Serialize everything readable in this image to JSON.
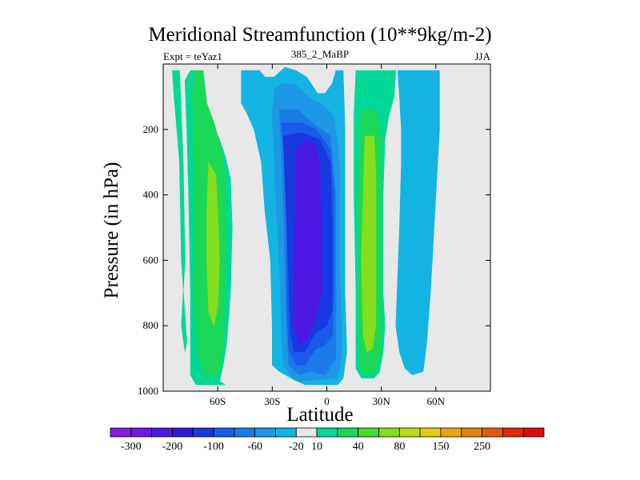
{
  "chart_data": {
    "type": "heatmap",
    "subtype": "filled-contour",
    "title": "Meridional Streamfunction (10**9kg/m-2)",
    "left_string": "Expt = teYaz1",
    "center_string": "385_2_MaBP",
    "right_string": "JJA",
    "xlabel": "Latitude",
    "ylabel": "Pressure (in hPa)",
    "xlim": [
      -90,
      90
    ],
    "ylim": [
      1000,
      0
    ],
    "x_ticks": [
      {
        "value": -60,
        "label": "60S"
      },
      {
        "value": -30,
        "label": "30S"
      },
      {
        "value": 0,
        "label": "0"
      },
      {
        "value": 30,
        "label": "30N"
      },
      {
        "value": 60,
        "label": "60N"
      }
    ],
    "y_ticks": [
      {
        "value": 200,
        "label": "200"
      },
      {
        "value": 400,
        "label": "400"
      },
      {
        "value": 600,
        "label": "600"
      },
      {
        "value": 800,
        "label": "800"
      },
      {
        "value": 1000,
        "label": "1000"
      }
    ],
    "colorbar": {
      "colors": [
        "#8a18e6",
        "#6c18e6",
        "#4a18e2",
        "#2e1ad6",
        "#1838e0",
        "#1a5ae8",
        "#1c7ae8",
        "#1c98e6",
        "#14b4e2",
        "#e8e8e8",
        "#00d898",
        "#1cd858",
        "#44dc2c",
        "#86de1e",
        "#bcda14",
        "#e2cc10",
        "#e6a812",
        "#e6820e",
        "#e4580c",
        "#e02a0a",
        "#e00a0a"
      ],
      "labels": [
        {
          "after_index": 0,
          "label": "-300"
        },
        {
          "after_index": 2,
          "label": "-200"
        },
        {
          "after_index": 4,
          "label": "-100"
        },
        {
          "after_index": 6,
          "label": "-60"
        },
        {
          "after_index": 8,
          "label": "-20"
        },
        {
          "after_index": 9,
          "label": "10"
        },
        {
          "after_index": 11,
          "label": "40"
        },
        {
          "after_index": 13,
          "label": "80"
        },
        {
          "after_index": 15,
          "label": "150"
        },
        {
          "after_index": 17,
          "label": "250"
        }
      ]
    },
    "contour_regions": [
      {
        "name": "sh-polar-outer",
        "level": 10,
        "color": "#00d898",
        "points": [
          [
            -75,
            20
          ],
          [
            -73,
            20
          ],
          [
            -71,
            50
          ],
          [
            -68,
            130
          ],
          [
            -63,
            180
          ],
          [
            -59,
            230
          ],
          [
            -56,
            280
          ],
          [
            -53,
            350
          ],
          [
            -52,
            500
          ],
          [
            -53,
            700
          ],
          [
            -55,
            850
          ],
          [
            -57,
            920
          ],
          [
            -59,
            970
          ],
          [
            -56,
            980
          ],
          [
            -72,
            980
          ],
          [
            -75,
            950
          ],
          [
            -75,
            700
          ],
          [
            -76,
            400
          ],
          [
            -77,
            200
          ],
          [
            -78,
            50
          ]
        ]
      },
      {
        "name": "sh-ferrel-outer-tongue",
        "level": 10,
        "color": "#00d898",
        "points": [
          [
            -85,
            20
          ],
          [
            -81,
            20
          ],
          [
            -79,
            300
          ],
          [
            -78,
            600
          ],
          [
            -80,
            800
          ],
          [
            -78,
            880
          ],
          [
            -77,
            850
          ],
          [
            -80,
            600
          ],
          [
            -81,
            300
          ],
          [
            -84,
            100
          ]
        ]
      },
      {
        "name": "sh-ferrel-core",
        "level": 40,
        "color": "#1cd858",
        "points": [
          [
            -73,
            20
          ],
          [
            -68,
            20
          ],
          [
            -66,
            120
          ],
          [
            -62,
            180
          ],
          [
            -58,
            260
          ],
          [
            -56,
            330
          ],
          [
            -55,
            500
          ],
          [
            -56,
            700
          ],
          [
            -57,
            850
          ],
          [
            -58,
            930
          ],
          [
            -61,
            955
          ],
          [
            -68,
            950
          ],
          [
            -71,
            880
          ],
          [
            -73,
            700
          ],
          [
            -73,
            500
          ],
          [
            -73,
            300
          ],
          [
            -74,
            100
          ]
        ]
      },
      {
        "name": "sh-ferrel-max",
        "level": 80,
        "color": "#86de1e",
        "points": [
          [
            -65,
            300
          ],
          [
            -61,
            340
          ],
          [
            -60,
            450
          ],
          [
            -59,
            600
          ],
          [
            -60,
            740
          ],
          [
            -62,
            800
          ],
          [
            -65,
            760
          ],
          [
            -66,
            600
          ],
          [
            -66,
            450
          ]
        ]
      },
      {
        "name": "sh-hadley-outer",
        "level": -20,
        "color": "#14b4e2",
        "points": [
          [
            -47,
            20
          ],
          [
            -37,
            20
          ],
          [
            -34,
            40
          ],
          [
            -29,
            40
          ],
          [
            -23,
            10
          ],
          [
            -17,
            20
          ],
          [
            -11,
            40
          ],
          [
            -5,
            90
          ],
          [
            -1,
            90
          ],
          [
            3,
            60
          ],
          [
            5,
            20
          ],
          [
            9,
            20
          ],
          [
            10,
            200
          ],
          [
            10,
            500
          ],
          [
            10,
            700
          ],
          [
            11,
            880
          ],
          [
            9,
            960
          ],
          [
            6,
            980
          ],
          [
            -12,
            980
          ],
          [
            -18,
            965
          ],
          [
            -26,
            940
          ],
          [
            -30,
            920
          ],
          [
            -30,
            800
          ],
          [
            -31,
            600
          ],
          [
            -34,
            450
          ],
          [
            -36,
            300
          ],
          [
            -40,
            200
          ],
          [
            -44,
            150
          ],
          [
            -47,
            120
          ]
        ]
      },
      {
        "name": "sh-hadley-60",
        "level": -60,
        "color": "#1c98e6",
        "points": [
          [
            -29,
            80
          ],
          [
            -25,
            60
          ],
          [
            -18,
            60
          ],
          [
            -12,
            90
          ],
          [
            -8,
            110
          ],
          [
            -3,
            120
          ],
          [
            4,
            160
          ],
          [
            7,
            300
          ],
          [
            7,
            600
          ],
          [
            8,
            800
          ],
          [
            8,
            900
          ],
          [
            6,
            960
          ],
          [
            -15,
            970
          ],
          [
            -19,
            960
          ],
          [
            -24,
            920
          ],
          [
            -25,
            780
          ],
          [
            -26,
            620
          ],
          [
            -28,
            420
          ],
          [
            -29,
            280
          ],
          [
            -30,
            160
          ]
        ]
      },
      {
        "name": "sh-hadley-100",
        "level": -100,
        "color": "#1c7ae8",
        "points": [
          [
            -26,
            140
          ],
          [
            -16,
            140
          ],
          [
            -8,
            180
          ],
          [
            2,
            220
          ],
          [
            5,
            400
          ],
          [
            5,
            650
          ],
          [
            5,
            800
          ],
          [
            5,
            900
          ],
          [
            -1,
            950
          ],
          [
            -9,
            940
          ],
          [
            -15,
            950
          ],
          [
            -21,
            920
          ],
          [
            -22,
            800
          ],
          [
            -23,
            600
          ],
          [
            -24,
            400
          ],
          [
            -25,
            250
          ]
        ]
      },
      {
        "name": "sh-hadley-140",
        "level": -140,
        "color": "#1a5ae8",
        "points": [
          [
            -25,
            180
          ],
          [
            -14,
            180
          ],
          [
            -6,
            200
          ],
          [
            2,
            260
          ],
          [
            4,
            400
          ],
          [
            4,
            700
          ],
          [
            3,
            830
          ],
          [
            -1,
            860
          ],
          [
            -6,
            870
          ],
          [
            -12,
            920
          ],
          [
            -17,
            920
          ],
          [
            -21,
            870
          ],
          [
            -22,
            700
          ],
          [
            -22,
            500
          ],
          [
            -23,
            300
          ]
        ]
      },
      {
        "name": "sh-hadley-180",
        "level": -180,
        "color": "#1838e0",
        "points": [
          [
            -24,
            220
          ],
          [
            -14,
            210
          ],
          [
            -4,
            230
          ],
          [
            2,
            300
          ],
          [
            3,
            500
          ],
          [
            3,
            750
          ],
          [
            0,
            800
          ],
          [
            -6,
            820
          ],
          [
            -12,
            880
          ],
          [
            -18,
            880
          ],
          [
            -20,
            820
          ],
          [
            -21,
            650
          ],
          [
            -22,
            500
          ],
          [
            -23,
            350
          ]
        ]
      },
      {
        "name": "sh-hadley-core",
        "level": -220,
        "color": "#4a18e2",
        "points": [
          [
            -17,
            260
          ],
          [
            -11,
            230
          ],
          [
            -6,
            250
          ],
          [
            -4,
            300
          ],
          [
            -3,
            500
          ],
          [
            -3,
            700
          ],
          [
            -6,
            780
          ],
          [
            -11,
            840
          ],
          [
            -15,
            860
          ],
          [
            -18,
            800
          ],
          [
            -18,
            600
          ],
          [
            -17,
            400
          ]
        ]
      },
      {
        "name": "nh-hadley-outer",
        "level": 10,
        "color": "#00d898",
        "points": [
          [
            16,
            20
          ],
          [
            38,
            20
          ],
          [
            37,
            100
          ],
          [
            34,
            160
          ],
          [
            32,
            230
          ],
          [
            31,
            400
          ],
          [
            31,
            550
          ],
          [
            31,
            700
          ],
          [
            32,
            800
          ],
          [
            31,
            880
          ],
          [
            29,
            940
          ],
          [
            26,
            960
          ],
          [
            19,
            960
          ],
          [
            16,
            930
          ],
          [
            16,
            700
          ],
          [
            15,
            400
          ],
          [
            15,
            150
          ]
        ]
      },
      {
        "name": "nh-hadley-40",
        "level": 40,
        "color": "#1cd858",
        "points": [
          [
            19,
            140
          ],
          [
            27,
            140
          ],
          [
            30,
            220
          ],
          [
            30,
            400
          ],
          [
            30,
            600
          ],
          [
            30,
            780
          ],
          [
            30,
            880
          ],
          [
            27,
            940
          ],
          [
            21,
            950
          ],
          [
            18,
            920
          ],
          [
            17,
            700
          ],
          [
            17,
            400
          ],
          [
            18,
            200
          ]
        ]
      },
      {
        "name": "nh-hadley-core",
        "level": 80,
        "color": "#86de1e",
        "points": [
          [
            21,
            220
          ],
          [
            26,
            220
          ],
          [
            27,
            330
          ],
          [
            27,
            500
          ],
          [
            27,
            680
          ],
          [
            27,
            800
          ],
          [
            25,
            870
          ],
          [
            22,
            880
          ],
          [
            20,
            830
          ],
          [
            19,
            600
          ],
          [
            20,
            400
          ]
        ]
      },
      {
        "name": "nh-ferrel",
        "level": -20,
        "color": "#14b4e2",
        "points": [
          [
            39,
            20
          ],
          [
            42,
            20
          ],
          [
            46,
            20
          ],
          [
            50,
            20
          ],
          [
            62,
            20
          ],
          [
            62,
            200
          ],
          [
            61,
            300
          ],
          [
            59,
            500
          ],
          [
            57,
            700
          ],
          [
            55,
            850
          ],
          [
            53,
            940
          ],
          [
            47,
            950
          ],
          [
            43,
            930
          ],
          [
            40,
            880
          ],
          [
            38,
            800
          ],
          [
            39,
            650
          ],
          [
            40,
            500
          ],
          [
            41,
            300
          ],
          [
            41,
            200
          ],
          [
            40,
            100
          ]
        ]
      }
    ]
  }
}
